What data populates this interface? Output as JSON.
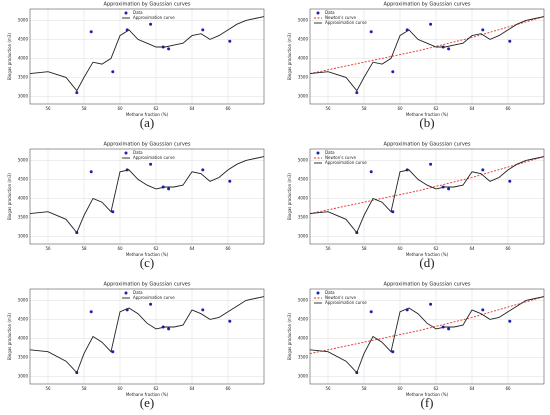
{
  "chart_data": [
    {
      "type": "line",
      "panel_label": "(a)",
      "title": "Approximation by Gaussian curves",
      "xlabel": "Methane fraction (%)",
      "ylabel": "Biogas production (m3)",
      "xlim": [
        55,
        68
      ],
      "ylim": [
        2800,
        5300
      ],
      "xticks": [
        56,
        58,
        60,
        62,
        64,
        66
      ],
      "yticks": [
        3000,
        3500,
        4000,
        4500,
        5000
      ],
      "grid": true,
      "legend": "upper center",
      "series": [
        {
          "name": "Data",
          "style": "markers",
          "color": "#1f1fb4",
          "x": [
            57.6,
            58.4,
            59.6,
            60.4,
            61.7,
            62.4,
            62.7,
            64.6,
            66.1
          ],
          "values": [
            3100,
            4700,
            3650,
            4750,
            4900,
            4300,
            4250,
            4750,
            4450
          ]
        },
        {
          "name": "Approximation curve",
          "style": "solid",
          "color": "#222222",
          "x": [
            55,
            56,
            57,
            57.6,
            58,
            58.5,
            59,
            59.5,
            60,
            60.5,
            61,
            61.5,
            62,
            62.5,
            63,
            63.5,
            64,
            64.5,
            65,
            65.5,
            66,
            66.5,
            67,
            67.5,
            68
          ],
          "values": [
            3600,
            3650,
            3500,
            3150,
            3500,
            3900,
            3850,
            4000,
            4600,
            4750,
            4500,
            4400,
            4300,
            4300,
            4350,
            4400,
            4600,
            4650,
            4500,
            4600,
            4750,
            4900,
            5000,
            5050,
            5100
          ]
        }
      ]
    },
    {
      "type": "line",
      "panel_label": "(b)",
      "title": "Approximation by Gaussian curves",
      "xlabel": "Methane fraction (%)",
      "ylabel": "Biogas production (m3)",
      "xlim": [
        55,
        68
      ],
      "ylim": [
        2800,
        5300
      ],
      "xticks": [
        56,
        58,
        60,
        62,
        64,
        66
      ],
      "yticks": [
        3000,
        3500,
        4000,
        4500,
        5000
      ],
      "grid": true,
      "legend": "upper left",
      "series": [
        {
          "name": "Data",
          "style": "markers",
          "color": "#1f1fb4",
          "x": [
            57.6,
            58.4,
            59.6,
            60.4,
            61.7,
            62.4,
            62.7,
            64.6,
            66.1
          ],
          "values": [
            3100,
            4700,
            3650,
            4750,
            4900,
            4300,
            4250,
            4750,
            4450
          ]
        },
        {
          "name": "Newton's curve",
          "style": "dashed",
          "color": "#e0302a",
          "x": [
            55,
            58,
            61,
            64,
            68
          ],
          "values": [
            3600,
            3900,
            4200,
            4550,
            5100
          ]
        },
        {
          "name": "Approximation curve",
          "style": "solid",
          "color": "#222222",
          "x": [
            55,
            56,
            57,
            57.6,
            58,
            58.5,
            59,
            59.5,
            60,
            60.5,
            61,
            61.5,
            62,
            62.5,
            63,
            63.5,
            64,
            64.5,
            65,
            65.5,
            66,
            66.5,
            67,
            67.5,
            68
          ],
          "values": [
            3600,
            3650,
            3500,
            3150,
            3500,
            3900,
            3850,
            4000,
            4600,
            4750,
            4500,
            4400,
            4300,
            4300,
            4350,
            4400,
            4600,
            4650,
            4500,
            4600,
            4750,
            4900,
            5000,
            5050,
            5100
          ]
        }
      ]
    },
    {
      "type": "line",
      "panel_label": "(c)",
      "title": "Approximation by Gaussian curves",
      "xlabel": "Methane fraction (%)",
      "ylabel": "Biogas production (m3)",
      "xlim": [
        55,
        68
      ],
      "ylim": [
        2800,
        5300
      ],
      "xticks": [
        56,
        58,
        60,
        62,
        64,
        66
      ],
      "yticks": [
        3000,
        3500,
        4000,
        4500,
        5000
      ],
      "grid": true,
      "legend": "upper center",
      "series": [
        {
          "name": "Data",
          "style": "markers",
          "color": "#1f1fb4",
          "x": [
            57.6,
            58.4,
            59.6,
            60.4,
            61.7,
            62.4,
            62.7,
            64.6,
            66.1
          ],
          "values": [
            3100,
            4700,
            3650,
            4750,
            4900,
            4300,
            4250,
            4750,
            4450
          ]
        },
        {
          "name": "Approximation curve",
          "style": "solid",
          "color": "#222222",
          "x": [
            55,
            56,
            57,
            57.6,
            58,
            58.5,
            59,
            59.5,
            60,
            60.5,
            61,
            61.5,
            62,
            62.5,
            63,
            63.5,
            64,
            64.5,
            65,
            65.5,
            66,
            66.5,
            67,
            67.5,
            68
          ],
          "values": [
            3600,
            3650,
            3450,
            3100,
            3550,
            4000,
            3900,
            3650,
            4700,
            4750,
            4500,
            4350,
            4250,
            4300,
            4300,
            4350,
            4700,
            4650,
            4450,
            4550,
            4750,
            4900,
            5000,
            5050,
            5100
          ]
        }
      ]
    },
    {
      "type": "line",
      "panel_label": "(d)",
      "title": "Approximation by Gaussian curves",
      "xlabel": "Methane fraction (%)",
      "ylabel": "Biogas production (m3)",
      "xlim": [
        55,
        68
      ],
      "ylim": [
        2800,
        5300
      ],
      "xticks": [
        56,
        58,
        60,
        62,
        64,
        66
      ],
      "yticks": [
        3000,
        3500,
        4000,
        4500,
        5000
      ],
      "grid": true,
      "legend": "upper left",
      "series": [
        {
          "name": "Data",
          "style": "markers",
          "color": "#1f1fb4",
          "x": [
            57.6,
            58.4,
            59.6,
            60.4,
            61.7,
            62.4,
            62.7,
            64.6,
            66.1
          ],
          "values": [
            3100,
            4700,
            3650,
            4750,
            4900,
            4300,
            4250,
            4750,
            4450
          ]
        },
        {
          "name": "Newton's curve",
          "style": "dashed",
          "color": "#e0302a",
          "x": [
            55,
            58,
            61,
            64,
            68
          ],
          "values": [
            3600,
            3900,
            4200,
            4550,
            5100
          ]
        },
        {
          "name": "Approximation curve",
          "style": "solid",
          "color": "#222222",
          "x": [
            55,
            56,
            57,
            57.6,
            58,
            58.5,
            59,
            59.5,
            60,
            60.5,
            61,
            61.5,
            62,
            62.5,
            63,
            63.5,
            64,
            64.5,
            65,
            65.5,
            66,
            66.5,
            67,
            67.5,
            68
          ],
          "values": [
            3600,
            3650,
            3450,
            3100,
            3550,
            4000,
            3900,
            3650,
            4700,
            4750,
            4500,
            4350,
            4250,
            4300,
            4300,
            4350,
            4700,
            4650,
            4450,
            4550,
            4750,
            4900,
            5000,
            5050,
            5100
          ]
        }
      ]
    },
    {
      "type": "line",
      "panel_label": "(e)",
      "title": "Approximation by Gaussian curves",
      "xlabel": "Methane fraction (%)",
      "ylabel": "Biogas production (m3)",
      "xlim": [
        55,
        68
      ],
      "ylim": [
        2800,
        5300
      ],
      "xticks": [
        56,
        58,
        60,
        62,
        64,
        66
      ],
      "yticks": [
        3000,
        3500,
        4000,
        4500,
        5000
      ],
      "grid": true,
      "legend": "upper center",
      "series": [
        {
          "name": "Data",
          "style": "markers",
          "color": "#1f1fb4",
          "x": [
            57.6,
            58.4,
            59.6,
            60.4,
            61.7,
            62.4,
            62.7,
            64.6,
            66.1
          ],
          "values": [
            3100,
            4700,
            3650,
            4750,
            4900,
            4300,
            4250,
            4750,
            4450
          ]
        },
        {
          "name": "Approximation curve",
          "style": "solid",
          "color": "#222222",
          "x": [
            55,
            56,
            57,
            57.6,
            58,
            58.5,
            59,
            59.5,
            60,
            60.5,
            61,
            61.5,
            62,
            62.5,
            63,
            63.5,
            64,
            64.5,
            65,
            65.5,
            66,
            66.5,
            67,
            67.5,
            68
          ],
          "values": [
            3700,
            3650,
            3400,
            3100,
            3600,
            4050,
            3900,
            3650,
            4700,
            4800,
            4650,
            4400,
            4250,
            4300,
            4300,
            4350,
            4750,
            4650,
            4500,
            4550,
            4700,
            4850,
            5000,
            5050,
            5100
          ]
        }
      ]
    },
    {
      "type": "line",
      "panel_label": "(f)",
      "title": "Approximation by Gaussian curves",
      "xlabel": "Methane fraction (%)",
      "ylabel": "Biogas production (m3)",
      "xlim": [
        55,
        68
      ],
      "ylim": [
        2800,
        5300
      ],
      "xticks": [
        56,
        58,
        60,
        62,
        64,
        66
      ],
      "yticks": [
        3000,
        3500,
        4000,
        4500,
        5000
      ],
      "grid": true,
      "legend": "upper left",
      "series": [
        {
          "name": "Data",
          "style": "markers",
          "color": "#1f1fb4",
          "x": [
            57.6,
            58.4,
            59.6,
            60.4,
            61.7,
            62.4,
            62.7,
            64.6,
            66.1
          ],
          "values": [
            3100,
            4700,
            3650,
            4750,
            4900,
            4300,
            4250,
            4750,
            4450
          ]
        },
        {
          "name": "Newton's curve",
          "style": "dashed",
          "color": "#e0302a",
          "x": [
            55,
            58,
            61,
            64,
            68
          ],
          "values": [
            3600,
            3900,
            4200,
            4550,
            5100
          ]
        },
        {
          "name": "Approximation curve",
          "style": "solid",
          "color": "#222222",
          "x": [
            55,
            56,
            57,
            57.6,
            58,
            58.5,
            59,
            59.5,
            60,
            60.5,
            61,
            61.5,
            62,
            62.5,
            63,
            63.5,
            64,
            64.5,
            65,
            65.5,
            66,
            66.5,
            67,
            67.5,
            68
          ],
          "values": [
            3700,
            3650,
            3400,
            3100,
            3600,
            4050,
            3900,
            3650,
            4700,
            4800,
            4650,
            4400,
            4250,
            4300,
            4300,
            4350,
            4750,
            4650,
            4500,
            4550,
            4700,
            4850,
            5000,
            5050,
            5100
          ]
        }
      ]
    }
  ]
}
